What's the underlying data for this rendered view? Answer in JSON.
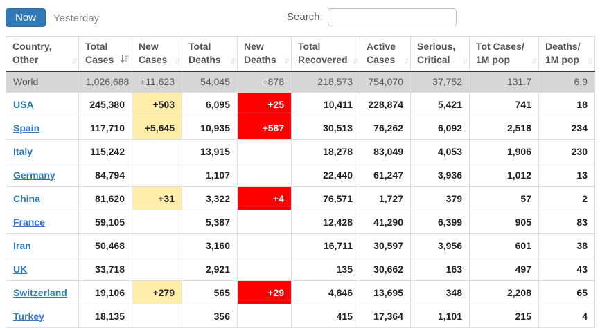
{
  "tabs": {
    "now": "Now",
    "yesterday": "Yesterday"
  },
  "search": {
    "label": "Search:",
    "value": ""
  },
  "colors": {
    "accent_blue": "#3179b7",
    "link_blue": "#2f7ab9",
    "new_cases_highlight": "#ffeeaa",
    "new_deaths_highlight": "#ff0000",
    "world_row_bg": "#d6d6d6"
  },
  "table": {
    "columns": [
      {
        "key": "country-other",
        "label": "Country,\nOther",
        "sort": "both"
      },
      {
        "key": "total-cases",
        "label": "Total\nCases",
        "sort": "desc"
      },
      {
        "key": "new-cases",
        "label": "New\nCases",
        "sort": "both"
      },
      {
        "key": "total-deaths",
        "label": "Total\nDeaths",
        "sort": "both"
      },
      {
        "key": "new-deaths",
        "label": "New\nDeaths",
        "sort": "both"
      },
      {
        "key": "total-recovered",
        "label": "Total\nRecovered",
        "sort": "both"
      },
      {
        "key": "active-cases",
        "label": "Active\nCases",
        "sort": "both"
      },
      {
        "key": "serious-critical",
        "label": "Serious,\nCritical",
        "sort": "both"
      },
      {
        "key": "tot-cases-1m-pop",
        "label": "Tot Cases/\n1M pop",
        "sort": "both"
      },
      {
        "key": "deaths-1m-pop",
        "label": "Deaths/\n1M pop",
        "sort": "both"
      }
    ],
    "world_row": {
      "name": "World",
      "cells": [
        "1,026,688",
        "+11,623",
        "54,045",
        "+878",
        "218,573",
        "754,070",
        "37,752",
        "131.7",
        "6.9"
      ]
    },
    "rows": [
      {
        "name": "USA",
        "cells": [
          "245,380",
          "+503",
          "6,095",
          "+25",
          "10,411",
          "228,874",
          "5,421",
          "741",
          "18"
        ]
      },
      {
        "name": "Spain",
        "cells": [
          "117,710",
          "+5,645",
          "10,935",
          "+587",
          "30,513",
          "76,262",
          "6,092",
          "2,518",
          "234"
        ]
      },
      {
        "name": "Italy",
        "cells": [
          "115,242",
          "",
          "13,915",
          "",
          "18,278",
          "83,049",
          "4,053",
          "1,906",
          "230"
        ]
      },
      {
        "name": "Germany",
        "cells": [
          "84,794",
          "",
          "1,107",
          "",
          "22,440",
          "61,247",
          "3,936",
          "1,012",
          "13"
        ]
      },
      {
        "name": "China",
        "cells": [
          "81,620",
          "+31",
          "3,322",
          "+4",
          "76,571",
          "1,727",
          "379",
          "57",
          "2"
        ]
      },
      {
        "name": "France",
        "cells": [
          "59,105",
          "",
          "5,387",
          "",
          "12,428",
          "41,290",
          "6,399",
          "905",
          "83"
        ]
      },
      {
        "name": "Iran",
        "cells": [
          "50,468",
          "",
          "3,160",
          "",
          "16,711",
          "30,597",
          "3,956",
          "601",
          "38"
        ]
      },
      {
        "name": "UK",
        "cells": [
          "33,718",
          "",
          "2,921",
          "",
          "135",
          "30,662",
          "163",
          "497",
          "43"
        ]
      },
      {
        "name": "Switzerland",
        "cells": [
          "19,106",
          "+279",
          "565",
          "+29",
          "4,846",
          "13,695",
          "348",
          "2,208",
          "65"
        ]
      },
      {
        "name": "Turkey",
        "cells": [
          "18,135",
          "",
          "356",
          "",
          "415",
          "17,364",
          "1,101",
          "215",
          "4"
        ]
      }
    ]
  }
}
